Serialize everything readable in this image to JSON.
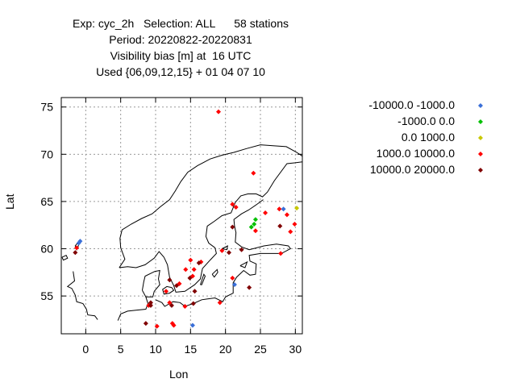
{
  "title_lines": [
    "Exp: cyc_2h   Selection: ALL      58 stations",
    "Period: 20220822-20220831",
    "Visibility bias [m] at  16 UTC",
    "Used {06,09,12,15} + 01 04 07 10"
  ],
  "chart_data": {
    "type": "scatter",
    "title": "Exp: cyc_2h   Selection: ALL      58 stations",
    "xlabel": "Lon",
    "ylabel": "Lat",
    "xlim": [
      -3.5,
      31
    ],
    "ylim": [
      51,
      76
    ],
    "xticks": [
      0,
      5,
      10,
      15,
      20,
      25,
      30
    ],
    "yticks": [
      55,
      60,
      65,
      70,
      75
    ],
    "grid": true,
    "legend_position": "right",
    "series": [
      {
        "name": "-10000.0 -1000.0",
        "color": "#3a6fd8",
        "points": [
          [
            -0.8,
            60.8
          ],
          [
            -1.0,
            60.6
          ],
          [
            28.3,
            64.2
          ],
          [
            21.3,
            56.2
          ],
          [
            15.3,
            51.9
          ]
        ]
      },
      {
        "name": "-1000.0 0.0",
        "color": "#00c000",
        "points": [
          [
            24.3,
            63.1
          ],
          [
            24.1,
            62.6
          ],
          [
            23.7,
            62.3
          ]
        ]
      },
      {
        "name": "0.0 1000.0",
        "color": "#c8c800",
        "points": [
          [
            30.2,
            64.3
          ]
        ]
      },
      {
        "name": "1000.0 10000.0",
        "color": "#ff0000",
        "points": [
          [
            19.0,
            74.5
          ],
          [
            24.0,
            68.0
          ],
          [
            21.0,
            64.7
          ],
          [
            21.5,
            64.4
          ],
          [
            25.7,
            63.8
          ],
          [
            24.3,
            61.9
          ],
          [
            27.7,
            64.2
          ],
          [
            28.8,
            63.6
          ],
          [
            29.9,
            62.6
          ],
          [
            29.3,
            61.8
          ],
          [
            27.9,
            59.5
          ],
          [
            19.5,
            59.8
          ],
          [
            15.0,
            58.8
          ],
          [
            16.5,
            58.6
          ],
          [
            14.3,
            57.8
          ],
          [
            15.5,
            57.8
          ],
          [
            15.3,
            57.1
          ],
          [
            13.4,
            56.3
          ],
          [
            11.5,
            55.5
          ],
          [
            21.0,
            56.9
          ],
          [
            -1.3,
            60.1
          ],
          [
            9.0,
            54.0
          ],
          [
            12.0,
            54.3
          ],
          [
            14.2,
            53.9
          ],
          [
            19.2,
            54.3
          ],
          [
            10.2,
            51.8
          ],
          [
            12.4,
            52.1
          ],
          [
            12.6,
            51.9
          ]
        ]
      },
      {
        "name": "10000.0 20000.0",
        "color": "#800000",
        "points": [
          [
            -1.5,
            59.6
          ],
          [
            21.0,
            62.3
          ],
          [
            27.8,
            62.4
          ],
          [
            22.3,
            59.9
          ],
          [
            16.2,
            58.5
          ],
          [
            14.9,
            56.9
          ],
          [
            12.0,
            56.7
          ],
          [
            23.4,
            55.9
          ],
          [
            9.3,
            54.3
          ],
          [
            9.3,
            54.0
          ],
          [
            12.3,
            54.0
          ],
          [
            15.4,
            54.2
          ],
          [
            8.6,
            52.1
          ],
          [
            15.6,
            55.5
          ],
          [
            13.0,
            56.1
          ],
          [
            20.5,
            59.6
          ]
        ]
      }
    ]
  }
}
